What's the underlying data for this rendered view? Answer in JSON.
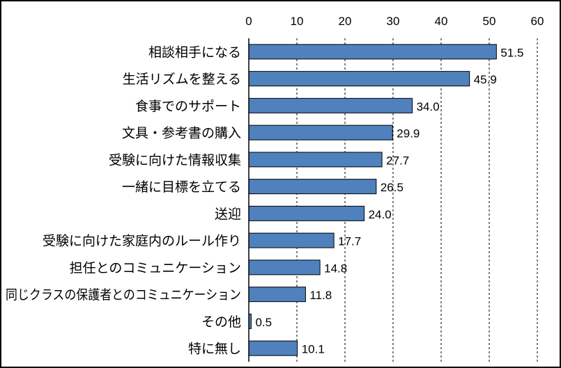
{
  "chart_data": {
    "type": "bar",
    "orientation": "horizontal",
    "categories": [
      "相談相手になる",
      "生活リズムを整える",
      "食事でのサポート",
      "文具・参考書の購入",
      "受験に向けた情報収集",
      "一緒に目標を立てる",
      "送迎",
      "受験に向けた家庭内のルール作り",
      "担任とのコミュニケーション",
      "同じクラスの保護者とのコミュニケーション",
      "その他",
      "特に無し"
    ],
    "values": [
      51.5,
      45.9,
      34.0,
      29.9,
      27.7,
      26.5,
      24.0,
      17.7,
      14.8,
      11.8,
      0.5,
      10.1
    ],
    "value_labels": [
      "51.5",
      "45.9",
      "34.0",
      "29.9",
      "27.7",
      "26.5",
      "24.0",
      "17.7",
      "14.8",
      "11.8",
      "0.5",
      "10.1"
    ],
    "x_ticks": [
      "0",
      "10",
      "20",
      "30",
      "40",
      "50",
      "60"
    ],
    "xlim": [
      0,
      60
    ],
    "x_axis_position": "top",
    "gridlines": "vertical dashed",
    "bar_color": "#4f81bd",
    "bar_border_color": "#000000"
  }
}
